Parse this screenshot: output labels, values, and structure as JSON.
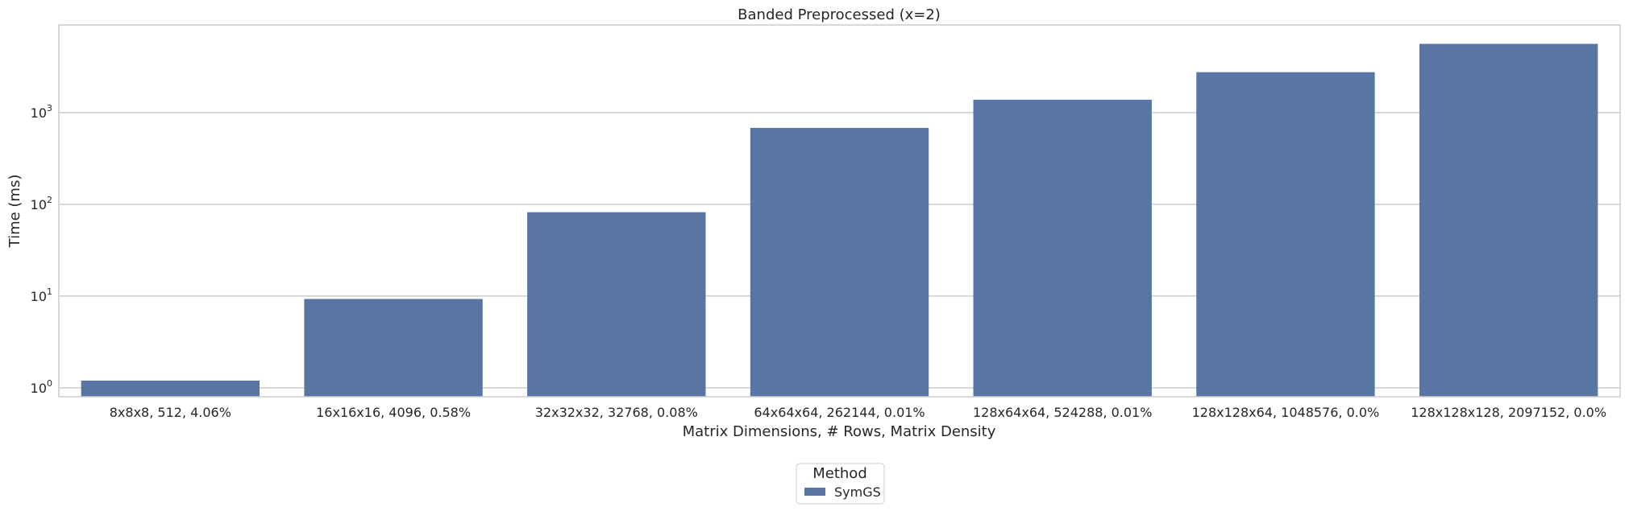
{
  "chart_data": {
    "type": "bar",
    "title": "Banded Preprocessed (x=2)",
    "xlabel": "Matrix Dimensions, # Rows, Matrix Density",
    "ylabel": "Time (ms)",
    "yscale": "log",
    "ylim": [
      0.8,
      9000
    ],
    "grid": true,
    "legend_position": "below",
    "categories": [
      "8x8x8, 512, 4.06%",
      "16x16x16, 4096, 0.58%",
      "32x32x32, 32768, 0.08%",
      "64x64x64, 262144, 0.01%",
      "128x64x64, 524288, 0.01%",
      "128x128x64, 1048576, 0.0%",
      "128x128x128, 2097152, 0.0%"
    ],
    "series": [
      {
        "name": "SymGS",
        "color": "#5875a4",
        "values": [
          1.2,
          9.3,
          82,
          680,
          1380,
          2750,
          5600
        ]
      }
    ],
    "yticks": [
      {
        "value": 1,
        "base": "10",
        "exp": "0"
      },
      {
        "value": 10,
        "base": "10",
        "exp": "1"
      },
      {
        "value": 100,
        "base": "10",
        "exp": "2"
      },
      {
        "value": 1000,
        "base": "10",
        "exp": "3"
      }
    ],
    "legend_title": "Method"
  }
}
